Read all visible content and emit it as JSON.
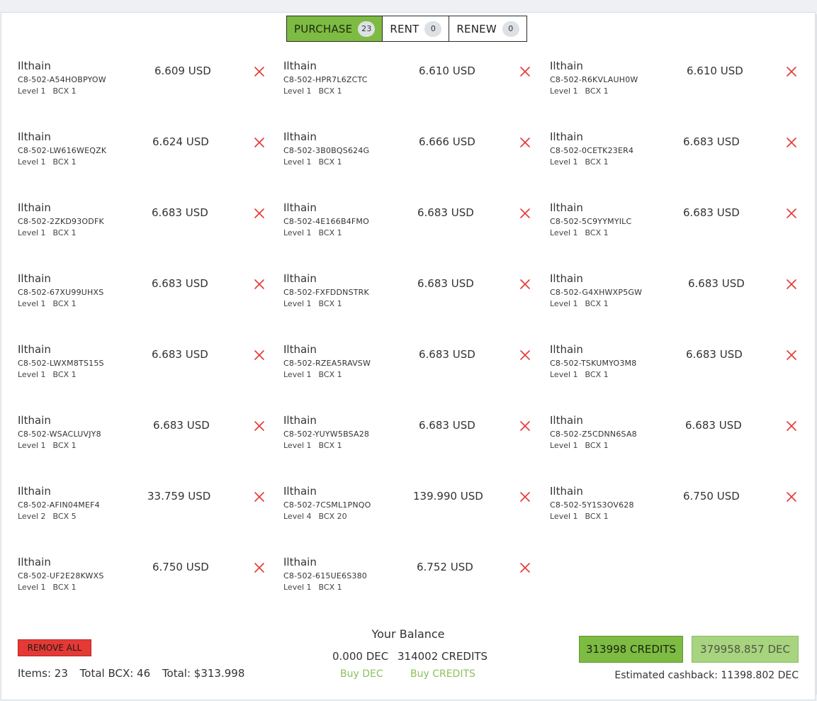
{
  "tabs": [
    {
      "label": "PURCHASE",
      "count": "23",
      "active": true
    },
    {
      "label": "RENT",
      "count": "0",
      "active": false
    },
    {
      "label": "RENEW",
      "count": "0",
      "active": false
    }
  ],
  "items": [
    {
      "name": "Ilthain",
      "uid": "C8-502-A54HOBPYOW",
      "level": "Level 1",
      "bcx": "BCX 1",
      "price": "6.609 USD"
    },
    {
      "name": "Ilthain",
      "uid": "C8-502-HPR7L6ZCTC",
      "level": "Level 1",
      "bcx": "BCX 1",
      "price": "6.610 USD"
    },
    {
      "name": "Ilthain",
      "uid": "C8-502-R6KVLAUH0W",
      "level": "Level 1",
      "bcx": "BCX 1",
      "price": "6.610 USD"
    },
    {
      "name": "Ilthain",
      "uid": "C8-502-LW616WEQZK",
      "level": "Level 1",
      "bcx": "BCX 1",
      "price": "6.624 USD"
    },
    {
      "name": "Ilthain",
      "uid": "C8-502-3B0BQS624G",
      "level": "Level 1",
      "bcx": "BCX 1",
      "price": "6.666 USD"
    },
    {
      "name": "Ilthain",
      "uid": "C8-502-0CETK23ER4",
      "level": "Level 1",
      "bcx": "BCX 1",
      "price": "6.683 USD"
    },
    {
      "name": "Ilthain",
      "uid": "C8-502-2ZKD93ODFK",
      "level": "Level 1",
      "bcx": "BCX 1",
      "price": "6.683 USD"
    },
    {
      "name": "Ilthain",
      "uid": "C8-502-4E166B4FMO",
      "level": "Level 1",
      "bcx": "BCX 1",
      "price": "6.683 USD"
    },
    {
      "name": "Ilthain",
      "uid": "C8-502-5C9YYMYILC",
      "level": "Level 1",
      "bcx": "BCX 1",
      "price": "6.683 USD"
    },
    {
      "name": "Ilthain",
      "uid": "C8-502-67XU99UHXS",
      "level": "Level 1",
      "bcx": "BCX 1",
      "price": "6.683 USD"
    },
    {
      "name": "Ilthain",
      "uid": "C8-502-FXFDDNSTRK",
      "level": "Level 1",
      "bcx": "BCX 1",
      "price": "6.683 USD"
    },
    {
      "name": "Ilthain",
      "uid": "C8-502-G4XHWXP5GW",
      "level": "Level 1",
      "bcx": "BCX 1",
      "price": "6.683 USD"
    },
    {
      "name": "Ilthain",
      "uid": "C8-502-LWXM8TS15S",
      "level": "Level 1",
      "bcx": "BCX 1",
      "price": "6.683 USD"
    },
    {
      "name": "Ilthain",
      "uid": "C8-502-RZEA5RAVSW",
      "level": "Level 1",
      "bcx": "BCX 1",
      "price": "6.683 USD"
    },
    {
      "name": "Ilthain",
      "uid": "C8-502-TSKUMYO3M8",
      "level": "Level 1",
      "bcx": "BCX 1",
      "price": "6.683 USD"
    },
    {
      "name": "Ilthain",
      "uid": "C8-502-WSACLUVJY8",
      "level": "Level 1",
      "bcx": "BCX 1",
      "price": "6.683 USD"
    },
    {
      "name": "Ilthain",
      "uid": "C8-502-YUYW5BSA28",
      "level": "Level 1",
      "bcx": "BCX 1",
      "price": "6.683 USD"
    },
    {
      "name": "Ilthain",
      "uid": "C8-502-Z5CDNN6SA8",
      "level": "Level 1",
      "bcx": "BCX 1",
      "price": "6.683 USD"
    },
    {
      "name": "Ilthain",
      "uid": "C8-502-AFIN04MEF4",
      "level": "Level 2",
      "bcx": "BCX 5",
      "price": "33.759 USD"
    },
    {
      "name": "Ilthain",
      "uid": "C8-502-7CSML1PNQO",
      "level": "Level 4",
      "bcx": "BCX 20",
      "price": "139.990 USD"
    },
    {
      "name": "Ilthain",
      "uid": "C8-502-5Y1S3OV628",
      "level": "Level 1",
      "bcx": "BCX 1",
      "price": "6.750 USD"
    },
    {
      "name": "Ilthain",
      "uid": "C8-502-UF2E28KWXS",
      "level": "Level 1",
      "bcx": "BCX 1",
      "price": "6.750 USD"
    },
    {
      "name": "Ilthain",
      "uid": "C8-502-615UE6S380",
      "level": "Level 1",
      "bcx": "BCX 1",
      "price": "6.752 USD"
    }
  ],
  "icons": {
    "remove_item": "close-icon"
  },
  "footer": {
    "remove_all_label": "REMOVE ALL",
    "items_text": "Items: 23",
    "total_bcx_text": "Total BCX: 46",
    "total_text": "Total: $313.998",
    "balance_title": "Your Balance",
    "balance_dec": "0.000 DEC",
    "balance_credits": "314002 CREDITS",
    "buy_dec_label": "Buy DEC",
    "buy_credits_label": "Buy CREDITS",
    "pay_credits_label": "313998 CREDITS",
    "pay_dec_label": "379958.857 DEC",
    "cashback_text": "Estimated cashback: 11398.802 DEC"
  },
  "colors": {
    "accent_green": "#7dbb42",
    "light_green": "#a8d37f",
    "link_green": "#8cbf5a",
    "danger_red": "#e53935"
  }
}
